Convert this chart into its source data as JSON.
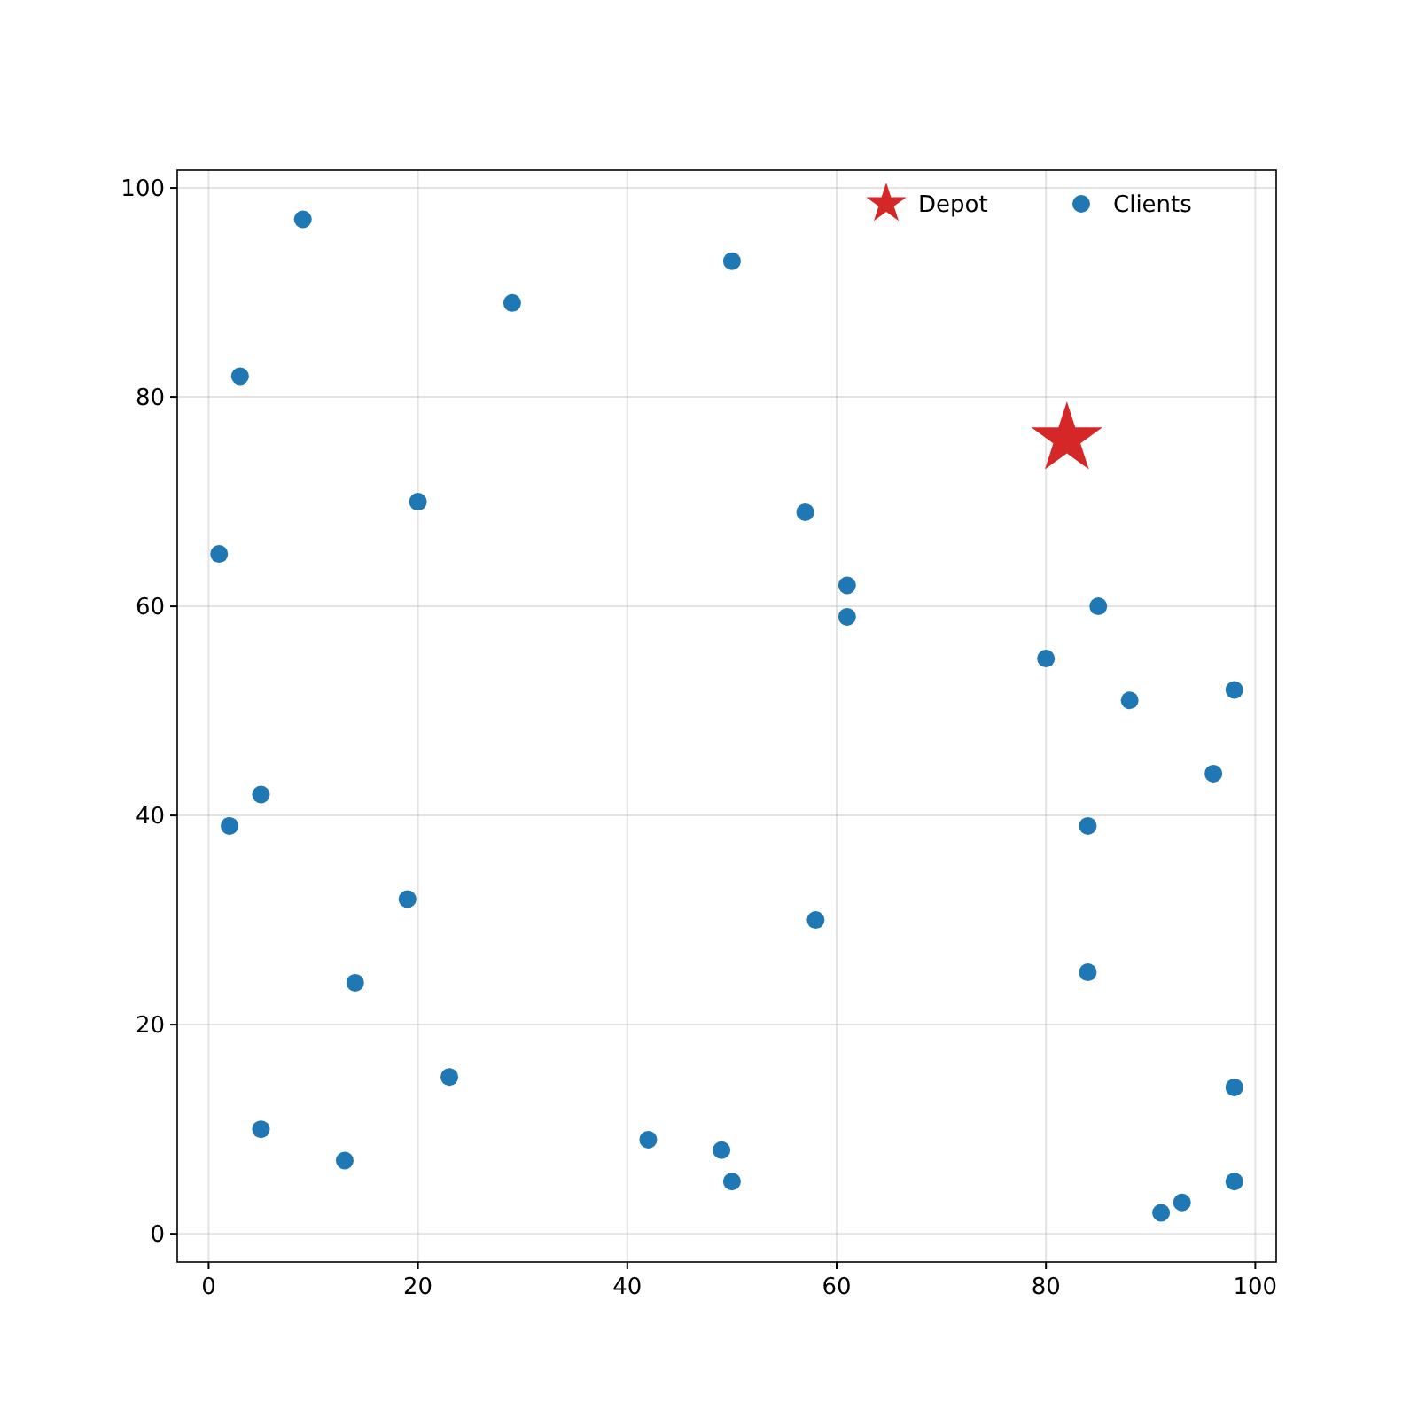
{
  "chart_data": {
    "type": "scatter",
    "xlim": [
      -3,
      102
    ],
    "ylim": [
      -2.7,
      101.7
    ],
    "xticks": [
      0,
      20,
      40,
      60,
      80,
      100
    ],
    "yticks": [
      0,
      20,
      40,
      60,
      80,
      100
    ],
    "grid": true,
    "legend": "top right",
    "series": [
      {
        "name": "Depot",
        "color": "#d62728",
        "marker": "star",
        "x": [
          82
        ],
        "values": [
          76
        ]
      },
      {
        "name": "Clients",
        "color": "#1f77b4",
        "marker": "circle",
        "x": [
          9,
          29,
          50,
          3,
          20,
          1,
          57,
          61,
          61,
          85,
          80,
          88,
          98,
          96,
          5,
          2,
          84,
          19,
          58,
          14,
          84,
          23,
          98,
          5,
          13,
          42,
          49,
          50,
          98,
          91,
          93
        ],
        "values": [
          97,
          89,
          93,
          82,
          70,
          65,
          69,
          62,
          59,
          60,
          55,
          51,
          52,
          44,
          42,
          39,
          39,
          32,
          30,
          24,
          25,
          15,
          14,
          10,
          7,
          9,
          8,
          5,
          5,
          2,
          3
        ]
      }
    ]
  }
}
